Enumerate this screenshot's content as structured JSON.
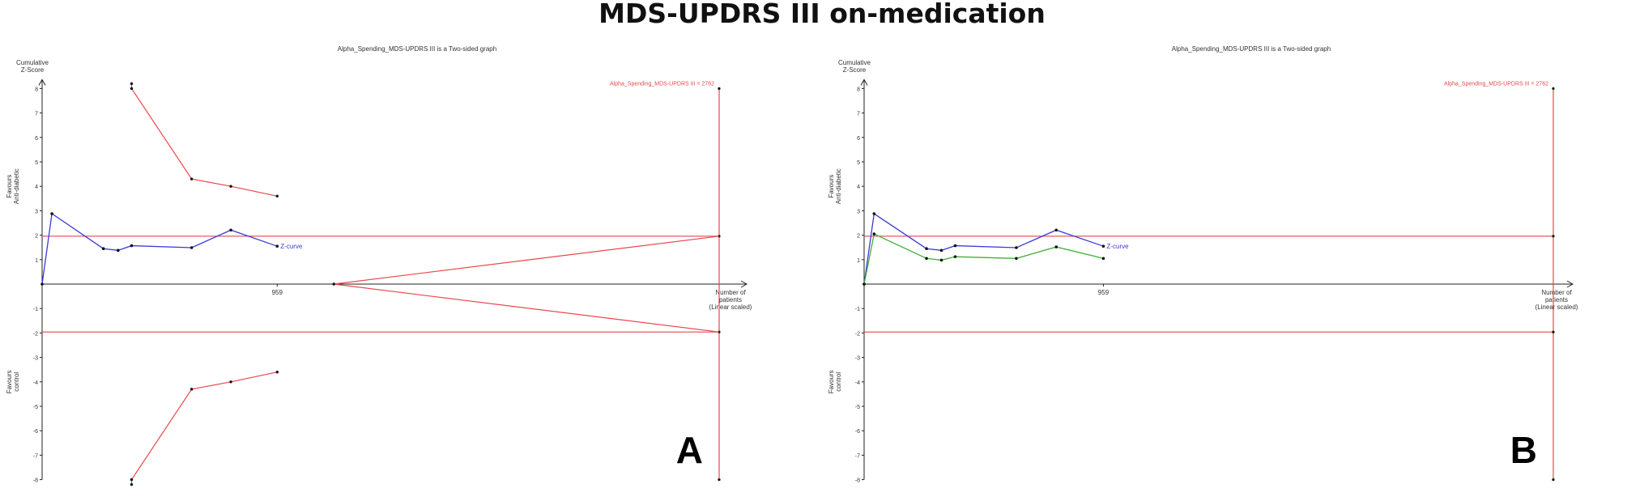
{
  "title": "MDS-UPDRS III on-medication",
  "colors": {
    "boundary": "#e8474c",
    "zcurve": "#3b3bdb",
    "green": "#41b03a",
    "axis": "#222222"
  },
  "chart_data": [
    {
      "panel_label": "A",
      "type": "line",
      "title": "Alpha_Spending_MDS-UPDRS III is a Two-sided graph",
      "ylabel": "Cumulative Z-Score",
      "xlabel": "Number of patients (Linear scaled)",
      "xlabel_lines": [
        "Number of",
        "patients",
        "(Linear scaled)"
      ],
      "ylabel_lines": [
        "Cumulative",
        "Z-Score"
      ],
      "favours_top": [
        "Favours",
        "Anti-diabetic"
      ],
      "favours_bottom": [
        "Favours",
        "control"
      ],
      "ylim": [
        -8,
        8
      ],
      "xlim": [
        0,
        3500
      ],
      "yticks": [
        -8,
        -7,
        -6,
        -5,
        -4,
        -3,
        -2,
        -1,
        1,
        2,
        3,
        4,
        5,
        6,
        7,
        8
      ],
      "x_tick_labels": [
        {
          "value": 959,
          "label": "959"
        }
      ],
      "ris": {
        "value": 2762,
        "label": "Alpha_Spending_MDS-UPDRS III = 2762"
      },
      "conventional_boundary": 1.96,
      "upper_boundary": {
        "x": [
          365,
          365,
          610,
          770,
          959
        ],
        "y": [
          8.2,
          8.0,
          4.3,
          4.0,
          3.6
        ]
      },
      "lower_boundary": {
        "x": [
          365,
          365,
          610,
          770,
          959
        ],
        "y": [
          -8.2,
          -8.0,
          -4.3,
          -4.0,
          -3.6
        ]
      },
      "futility_wedge": {
        "x": [
          1190,
          2762
        ],
        "y_upper": [
          0,
          1.96
        ],
        "y_lower": [
          0,
          -1.96
        ]
      },
      "series": [
        {
          "name": "Z-curve",
          "color_key": "zcurve",
          "x": [
            0,
            40,
            250,
            310,
            365,
            610,
            770,
            959
          ],
          "y": [
            0,
            2.88,
            1.45,
            1.38,
            1.57,
            1.49,
            2.21,
            1.55
          ]
        }
      ]
    },
    {
      "panel_label": "B",
      "type": "line",
      "title": "Alpha_Spending_MDS-UPDRS III is a Two-sided graph",
      "ylabel": "Cumulative Z-Score",
      "xlabel": "Number of patients (Linear scaled)",
      "xlabel_lines": [
        "Number of",
        "patients",
        "(Linear scaled)"
      ],
      "ylabel_lines": [
        "Cumulative",
        "Z-Score"
      ],
      "favours_top": [
        "Favours",
        "Anti-diabetic"
      ],
      "favours_bottom": [
        "Favours",
        "control"
      ],
      "ylim": [
        -8,
        8
      ],
      "xlim": [
        0,
        3500
      ],
      "yticks": [
        -8,
        -7,
        -6,
        -5,
        -4,
        -3,
        -2,
        -1,
        1,
        2,
        3,
        4,
        5,
        6,
        7,
        8
      ],
      "x_tick_labels": [
        {
          "value": 959,
          "label": "959"
        }
      ],
      "ris": {
        "value": 2762,
        "label": "Alpha_Spending_MDS-UPDRS III = 2762"
      },
      "conventional_boundary": 1.96,
      "upper_boundary": null,
      "lower_boundary": null,
      "futility_wedge": null,
      "series": [
        {
          "name": "Z-curve",
          "color_key": "zcurve",
          "x": [
            0,
            40,
            250,
            310,
            365,
            610,
            770,
            959
          ],
          "y": [
            0,
            2.88,
            1.45,
            1.38,
            1.57,
            1.49,
            2.21,
            1.55
          ]
        },
        {
          "name": "",
          "color_key": "green",
          "x": [
            0,
            40,
            250,
            310,
            365,
            610,
            770,
            959
          ],
          "y": [
            0,
            2.05,
            1.05,
            0.98,
            1.12,
            1.05,
            1.52,
            1.05
          ]
        }
      ]
    }
  ]
}
